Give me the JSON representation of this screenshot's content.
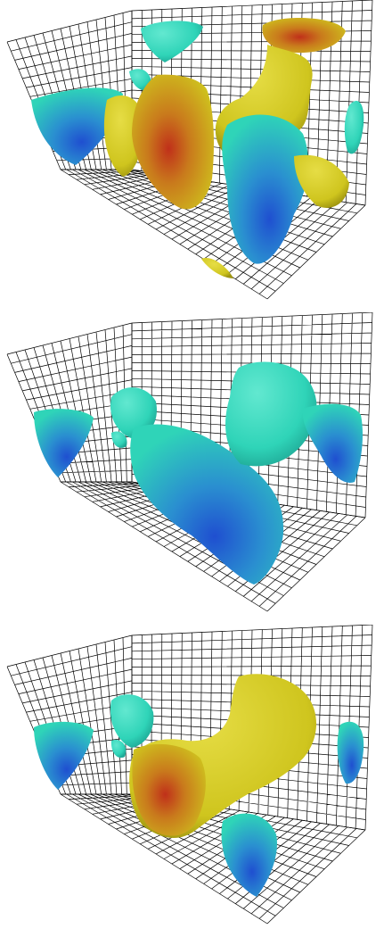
{
  "figure": {
    "panels": [
      {
        "id": "panel-1",
        "variant": "mixed"
      },
      {
        "id": "panel-2",
        "variant": "cyan"
      },
      {
        "id": "panel-3",
        "variant": "mixed"
      }
    ],
    "colors": {
      "grid_line": "#000000",
      "background": "#ffffff",
      "cyan_surface": "#2fd4b8",
      "cyan_highlight": "#62e8d0",
      "blue_core": "#1f4fd0",
      "yellow_surface": "#cfc51e",
      "yellow_highlight": "#e6dd45",
      "red_core": "#c0301a"
    }
  }
}
